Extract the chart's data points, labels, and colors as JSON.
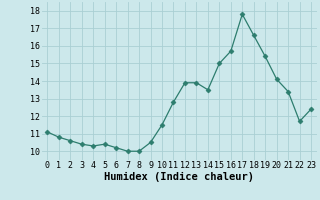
{
  "x": [
    0,
    1,
    2,
    3,
    4,
    5,
    6,
    7,
    8,
    9,
    10,
    11,
    12,
    13,
    14,
    15,
    16,
    17,
    18,
    19,
    20,
    21,
    22,
    23
  ],
  "y": [
    11.1,
    10.8,
    10.6,
    10.4,
    10.3,
    10.4,
    10.2,
    10.0,
    10.0,
    10.5,
    11.5,
    12.8,
    13.9,
    13.9,
    13.5,
    15.0,
    15.7,
    17.8,
    16.6,
    15.4,
    14.1,
    13.4,
    11.7,
    12.4
  ],
  "xlabel": "Humidex (Indice chaleur)",
  "line_color": "#2d7d6e",
  "marker": "D",
  "marker_size": 2.5,
  "bg_color": "#cce8eb",
  "grid_color": "#aacfd4",
  "xlim": [
    -0.5,
    23.5
  ],
  "ylim": [
    9.5,
    18.5
  ],
  "yticks": [
    10,
    11,
    12,
    13,
    14,
    15,
    16,
    17,
    18
  ],
  "xtick_labels": [
    "0",
    "1",
    "2",
    "3",
    "4",
    "5",
    "6",
    "7",
    "8",
    "9",
    "10",
    "11",
    "12",
    "13",
    "14",
    "15",
    "16",
    "17",
    "18",
    "19",
    "20",
    "21",
    "22",
    "23"
  ],
  "tick_fontsize": 6.0,
  "xlabel_fontsize": 7.5,
  "xlabel_bold": true
}
